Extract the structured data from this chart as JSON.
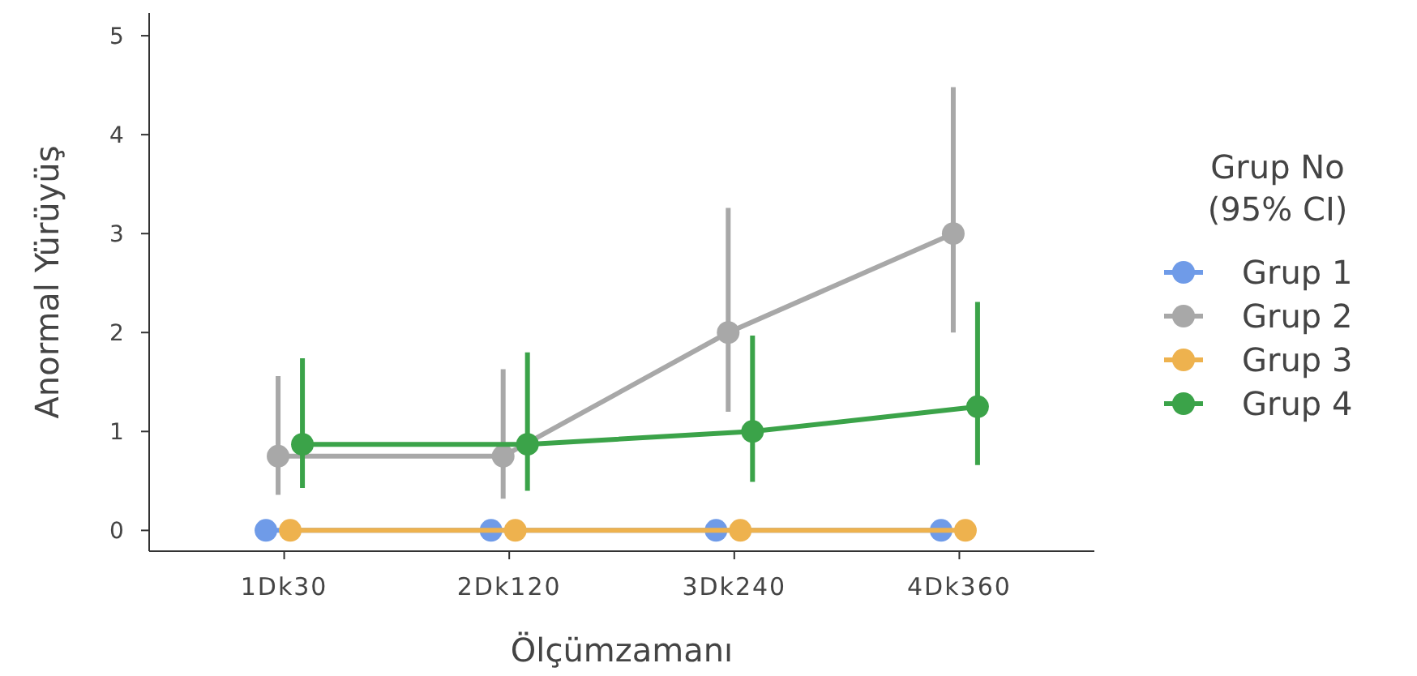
{
  "chart_data": {
    "type": "line",
    "xlabel": "Ölçümzamanı",
    "ylabel": "Anormal Yürüyüş",
    "legend_title": "Grup No\n(95% CI)",
    "legend": "right",
    "marker": "circle",
    "categories": [
      "1Dk30",
      "2Dk120",
      "3Dk240",
      "4Dk360"
    ],
    "ylim": [
      -0.21,
      5.23
    ],
    "yticks": [
      0,
      1,
      2,
      3,
      4,
      5
    ],
    "series": [
      {
        "name": "Grup 1",
        "color": "#6f9be8",
        "values": [
          0,
          0,
          0,
          0
        ]
      },
      {
        "name": "Grup 2",
        "color": "#a8a8a8",
        "values": [
          0.75,
          0.75,
          2,
          3
        ],
        "errors": [
          [
            0.36,
            1.56
          ],
          [
            0.32,
            1.63
          ],
          [
            1.2,
            3.26
          ],
          [
            2,
            4.48
          ]
        ]
      },
      {
        "name": "Grup 3",
        "color": "#eeb24e",
        "values": [
          0,
          0,
          0,
          0
        ]
      },
      {
        "name": "Grup 4",
        "color": "#3ba349",
        "values": [
          0.87,
          0.87,
          1,
          1.25
        ],
        "errors": [
          [
            0.43,
            1.74
          ],
          [
            0.4,
            1.8
          ],
          [
            0.49,
            1.97
          ],
          [
            0.66,
            2.31
          ]
        ]
      }
    ]
  }
}
